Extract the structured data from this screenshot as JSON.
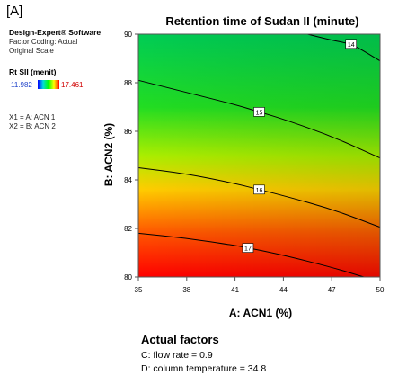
{
  "panel_label": "[A]",
  "sidebar": {
    "software": "Design-Expert® Software",
    "factor_coding": "Factor Coding: Actual",
    "scale": "Original Scale",
    "response_name": "Rt SII (menit)",
    "legend_min": "11.982",
    "legend_max": "17.461",
    "x1_map": "X1 = A: ACN 1",
    "x2_map": "X2 = B: ACN 2"
  },
  "actual_factors": {
    "title": "Actual factors",
    "c": "C: flow rate = 0.9",
    "d": "D: column temperature = 34.8"
  },
  "chart_data": {
    "type": "contour",
    "title": "Retention time of Sudan II (minute)",
    "xlabel": "A: ACN1 (%)",
    "ylabel": "B: ACN2 (%)",
    "xlim": [
      35,
      50
    ],
    "ylim": [
      80,
      90
    ],
    "x_ticks": [
      "35",
      "38",
      "41",
      "44",
      "47",
      "50"
    ],
    "y_ticks": [
      "80",
      "82",
      "84",
      "86",
      "88",
      "90"
    ],
    "color_scale": {
      "min": 11.982,
      "max": 17.461,
      "colors": [
        "#0000ff",
        "#00dcdc",
        "#00ff00",
        "#ffff00",
        "#ff0000"
      ]
    },
    "contours": [
      {
        "level": "14",
        "label_at": [
          48.2,
          89.6
        ],
        "points": [
          [
            45.5,
            90.0
          ],
          [
            47.0,
            89.75
          ],
          [
            48.2,
            89.6
          ],
          [
            49.0,
            89.3
          ],
          [
            50.0,
            88.9
          ]
        ]
      },
      {
        "level": "15",
        "label_at": [
          42.5,
          86.8
        ],
        "points": [
          [
            35.0,
            88.1
          ],
          [
            38.0,
            87.6
          ],
          [
            41.0,
            87.1
          ],
          [
            42.5,
            86.8
          ],
          [
            44.0,
            86.5
          ],
          [
            47.0,
            85.8
          ],
          [
            50.0,
            84.9
          ]
        ]
      },
      {
        "level": "16",
        "label_at": [
          42.5,
          83.6
        ],
        "points": [
          [
            35.0,
            84.5
          ],
          [
            38.0,
            84.25
          ],
          [
            41.0,
            83.85
          ],
          [
            42.5,
            83.6
          ],
          [
            44.0,
            83.35
          ],
          [
            47.0,
            82.8
          ],
          [
            50.0,
            82.05
          ]
        ]
      },
      {
        "level": "17",
        "label_at": [
          41.8,
          81.2
        ],
        "points": [
          [
            35.0,
            81.8
          ],
          [
            38.0,
            81.6
          ],
          [
            41.0,
            81.3
          ],
          [
            41.8,
            81.2
          ],
          [
            44.0,
            80.9
          ],
          [
            47.0,
            80.4
          ],
          [
            49.0,
            80.0
          ]
        ]
      }
    ]
  }
}
